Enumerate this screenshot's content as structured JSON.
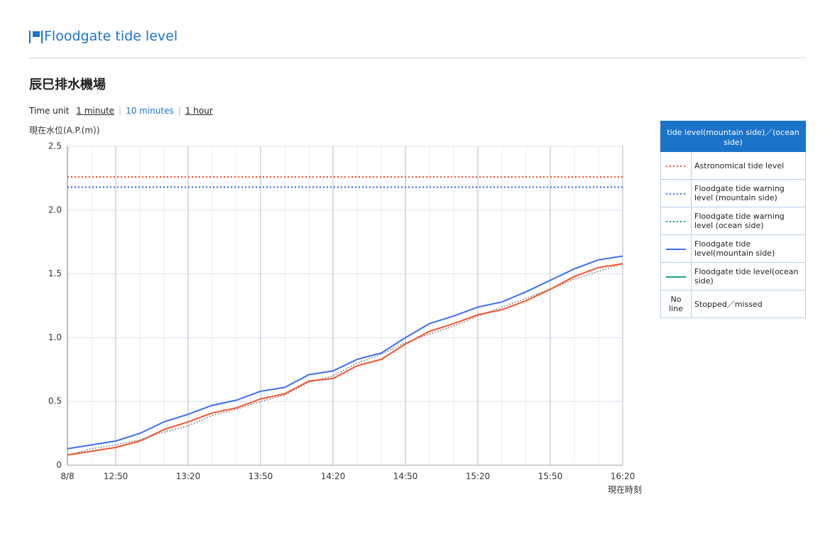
{
  "header": {
    "title": "Floodgate tide level"
  },
  "station": "辰巳排水機場",
  "time_unit": {
    "label": "Time unit",
    "options": [
      "1 minute",
      "10 minutes",
      "1 hour"
    ],
    "selected": 1
  },
  "chart_data": {
    "type": "line",
    "ylabel": "現在水位(A.P.(m))",
    "xlabel": "現在時刻",
    "categories": [
      "8/8",
      null,
      "12:50",
      null,
      null,
      "13:20",
      null,
      null,
      "13:50",
      null,
      null,
      "14:20",
      null,
      null,
      "14:50",
      null,
      null,
      "15:20",
      null,
      null,
      "15:50",
      null,
      null,
      "16:20"
    ],
    "series": [
      {
        "color": "#f0552f",
        "dash": true,
        "values": [
          2.26,
          2.26,
          2.26,
          2.26,
          2.26,
          2.26,
          2.26,
          2.26,
          2.26,
          2.26,
          2.26,
          2.26,
          2.26,
          2.26,
          2.26,
          2.26,
          2.26,
          2.26,
          2.26,
          2.26,
          2.26,
          2.26,
          2.26,
          2.26
        ]
      },
      {
        "color": "#3b6ff0",
        "dash": true,
        "values": [
          2.18,
          2.18,
          2.18,
          2.18,
          2.18,
          2.18,
          2.18,
          2.18,
          2.18,
          2.18,
          2.18,
          2.18,
          2.18,
          2.18,
          2.18,
          2.18,
          2.18,
          2.18,
          2.18,
          2.18,
          2.18,
          2.18,
          2.18,
          2.18
        ]
      },
      {
        "color": "#666666",
        "dash": true,
        "values": [
          0.08,
          0.13,
          0.16,
          0.2,
          0.26,
          0.31,
          0.39,
          0.44,
          0.5,
          0.55,
          0.65,
          0.7,
          0.8,
          0.87,
          0.96,
          1.03,
          1.09,
          1.17,
          1.24,
          1.31,
          1.38,
          1.46,
          1.52,
          1.58
        ]
      },
      {
        "color": "#3b6ff0",
        "dash": false,
        "values": [
          0.13,
          0.16,
          0.19,
          0.25,
          0.34,
          0.4,
          0.47,
          0.51,
          0.58,
          0.61,
          0.71,
          0.74,
          0.83,
          0.88,
          1.0,
          1.11,
          1.17,
          1.24,
          1.28,
          1.36,
          1.45,
          1.54,
          1.61,
          1.64
        ]
      },
      {
        "color": "#f0552f",
        "dash": false,
        "values": [
          0.08,
          0.11,
          0.14,
          0.19,
          0.28,
          0.34,
          0.41,
          0.45,
          0.52,
          0.56,
          0.66,
          0.68,
          0.78,
          0.83,
          0.95,
          1.05,
          1.11,
          1.18,
          1.22,
          1.29,
          1.38,
          1.48,
          1.55,
          1.58
        ]
      }
    ],
    "ylim": [
      0,
      2.5
    ],
    "yticks": [
      0,
      0.5,
      {
        "value": 1,
        "label": "1.0"
      },
      1.5,
      {
        "value": 2,
        "label": "2.0"
      },
      2.5
    ],
    "grid": true
  },
  "legend": {
    "title": "tide level(mountain side)／(ocean side)",
    "rows": [
      {
        "label": "Astronomical tide level",
        "color": "#f0552f",
        "dash": true
      },
      {
        "label": "Floodgate tide warning level (mountain side)",
        "color": "#3b6ff0",
        "dash": true
      },
      {
        "label": "Floodgate tide warning level (ocean side)",
        "color": "#1aa37a",
        "dash": true
      },
      {
        "label": "Floodgate tide level(mountain side)",
        "color": "#3b6ff0",
        "dash": false
      },
      {
        "label": "Floodgate tide level(ocean side)",
        "color": "#1aa37a",
        "dash": false
      },
      {
        "symbol": "No line",
        "label": "Stopped／missed"
      }
    ]
  }
}
